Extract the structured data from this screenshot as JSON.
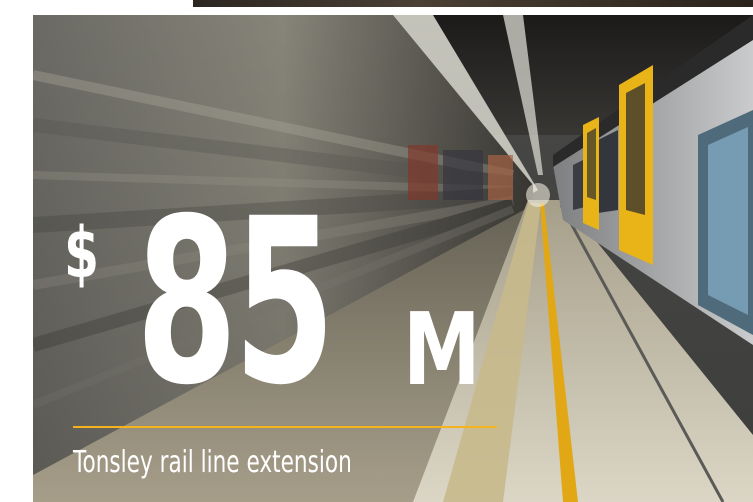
{
  "headline": {
    "currency_symbol": "$",
    "amount": "85",
    "unit": "M"
  },
  "caption": "Tonsley rail line extension",
  "colors": {
    "accent_rule": "#f5b41e",
    "text": "#ffffff",
    "train_doors": "#e8b417"
  },
  "image": {
    "subject": "motion-blurred train beside a station platform"
  }
}
